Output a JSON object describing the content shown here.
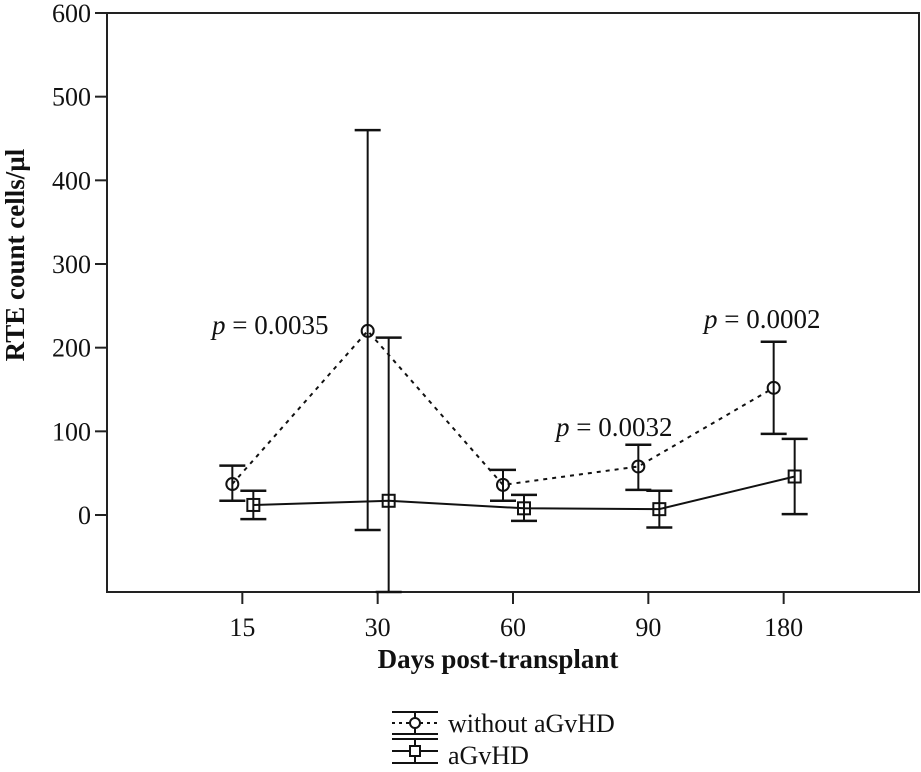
{
  "chart_data": {
    "type": "line",
    "title": "",
    "xlabel": "Days post-transplant",
    "ylabel": "RTE count cells/µl",
    "categories": [
      "15",
      "30",
      "60",
      "90",
      "180"
    ],
    "ylim": [
      -92,
      600
    ],
    "yticks": [
      "0",
      "100",
      "200",
      "300",
      "400",
      "500",
      "600"
    ],
    "ytick_values": [
      0,
      100,
      200,
      300,
      400,
      500,
      600
    ],
    "grid": false,
    "legend_position": "bottom",
    "series": [
      {
        "name": "without aGvHD",
        "marker": "circle",
        "line_style": "dotted",
        "values": [
          37,
          220,
          36,
          58,
          152
        ],
        "err_low": [
          17,
          -18,
          17,
          30,
          97
        ],
        "err_high": [
          59,
          460,
          54,
          84,
          207
        ]
      },
      {
        "name": "aGvHD",
        "marker": "square",
        "line_style": "solid",
        "values": [
          12,
          17,
          8,
          7,
          46
        ],
        "err_low": [
          -5,
          -92,
          -7,
          -15,
          1
        ],
        "err_high": [
          29,
          212,
          24,
          29,
          91
        ]
      }
    ],
    "annotations": [
      {
        "p_label": "p",
        "text": " = 0.0035",
        "category": "30"
      },
      {
        "p_label": "p",
        "text": " = 0.0032",
        "category": "90"
      },
      {
        "p_label": "p",
        "text": " = 0.0002",
        "category": "180"
      }
    ],
    "colors": {
      "line": "#111111",
      "background": "#ffffff"
    }
  }
}
